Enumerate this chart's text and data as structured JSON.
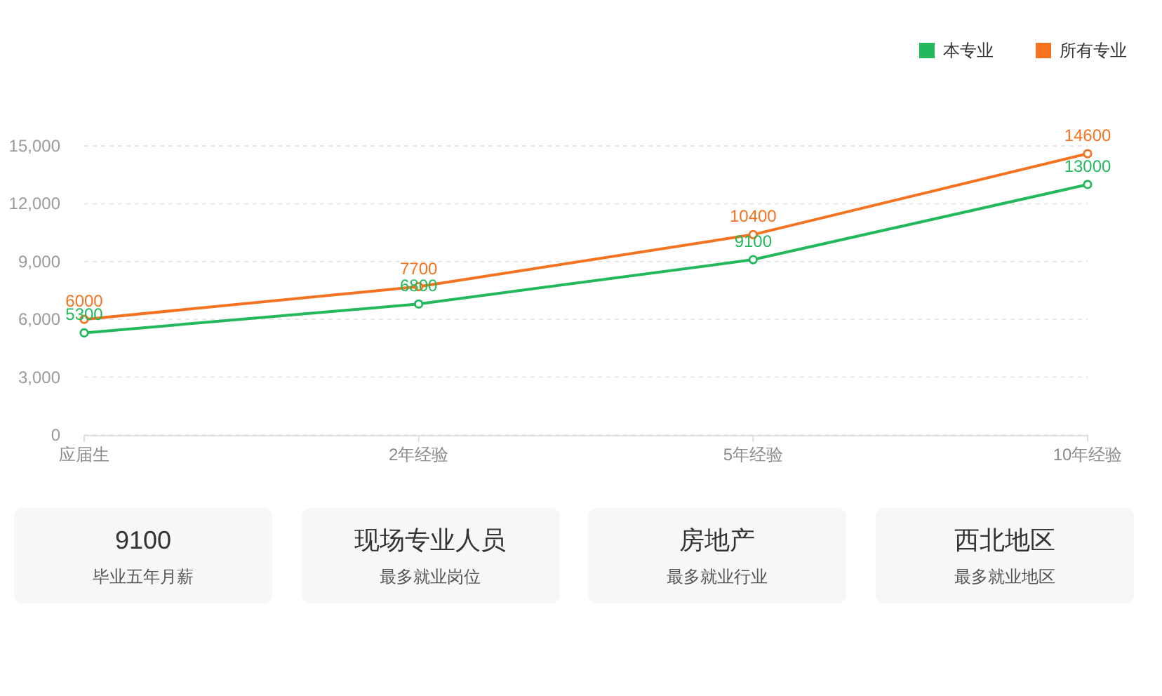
{
  "chart_data": [
    {
      "type": "line",
      "categories": [
        "应届生",
        "2年经验",
        "5年经验",
        "10年经验"
      ],
      "series": [
        {
          "name": "本专业",
          "color": "#22b85b",
          "values": [
            5300,
            6800,
            9100,
            13000
          ]
        },
        {
          "name": "所有专业",
          "color": "#f47321",
          "values": [
            6000,
            7700,
            10400,
            14600
          ]
        }
      ],
      "ylim": [
        0,
        15000
      ],
      "yticks": [
        0,
        {
          "value": 3000,
          "label": "3,000"
        },
        {
          "value": 6000,
          "label": "6,000"
        },
        {
          "value": 9000,
          "label": "9,000"
        },
        {
          "value": 12000,
          "label": "12,000"
        },
        {
          "value": 15000,
          "label": "15,000"
        }
      ],
      "grid": "y",
      "legend": "top right",
      "marker": "circle",
      "line_style": "solid",
      "data_labels": true
    },
    {
      "type": "other",
      "title": "9100",
      "subtitle": "毕业五年月薪"
    },
    {
      "type": "other",
      "title": "现场专业人员",
      "subtitle": "最多就业岗位"
    },
    {
      "type": "other",
      "title": "房地产",
      "subtitle": "最多就业行业"
    },
    {
      "type": "other",
      "title": "西北地区",
      "subtitle": "最多就业地区"
    }
  ]
}
